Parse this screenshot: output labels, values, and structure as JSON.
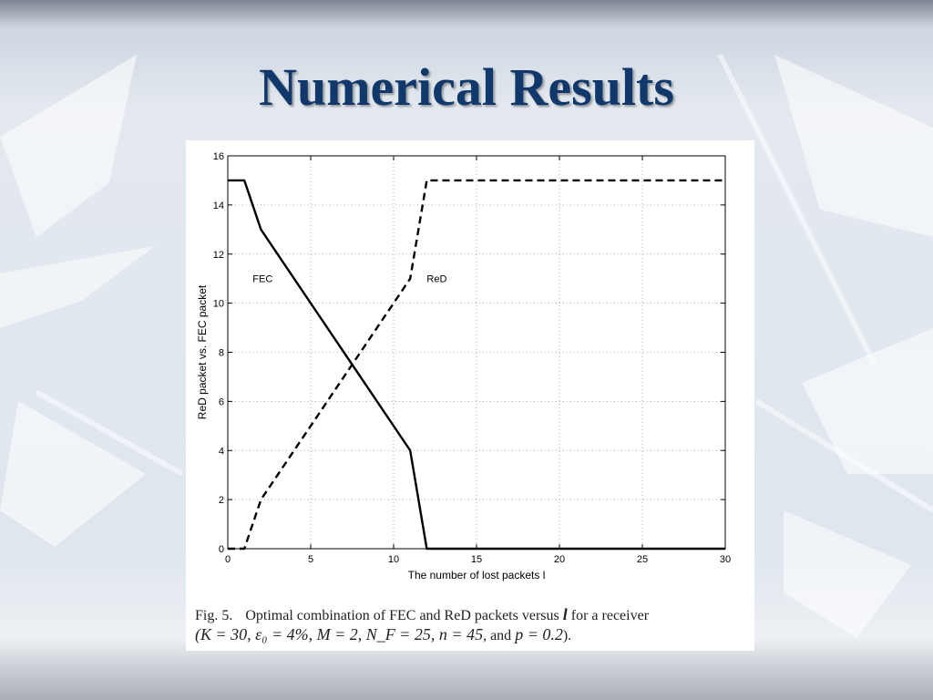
{
  "slide": {
    "title": "Numerical Results"
  },
  "caption": {
    "label": "Fig. 5.",
    "text_before": "Optimal combination of FEC and ReD packets versus ",
    "variable": "l",
    "text_after": " for a receiver",
    "params_math": "(K = 30, ε₀ = 4%, M = 2, N_F = 25, n = 45",
    "params_and": ", and ",
    "params_p": "p = 0.2",
    "params_end": ")."
  },
  "chart_data": {
    "type": "line",
    "xlabel": "The number of lost packets l",
    "ylabel": "ReD packet vs. FEC packet",
    "xlim": [
      0,
      30
    ],
    "ylim": [
      0,
      16
    ],
    "xticks": [
      0,
      5,
      10,
      15,
      20,
      25,
      30
    ],
    "yticks": [
      0,
      2,
      4,
      6,
      8,
      10,
      12,
      14,
      16
    ],
    "grid": true,
    "series": [
      {
        "name": "FEC",
        "style": "solid",
        "x": [
          0,
          1,
          2,
          11,
          12,
          30
        ],
        "y": [
          15,
          15,
          13,
          4,
          0,
          0
        ]
      },
      {
        "name": "ReD",
        "style": "dashed",
        "x": [
          0,
          1,
          2,
          11,
          12,
          30
        ],
        "y": [
          0,
          0,
          2,
          11,
          15,
          15
        ]
      }
    ],
    "annotations": [
      {
        "text": "FEC",
        "x": 1.5,
        "y": 11
      },
      {
        "text": "ReD",
        "x": 12,
        "y": 11
      }
    ]
  }
}
